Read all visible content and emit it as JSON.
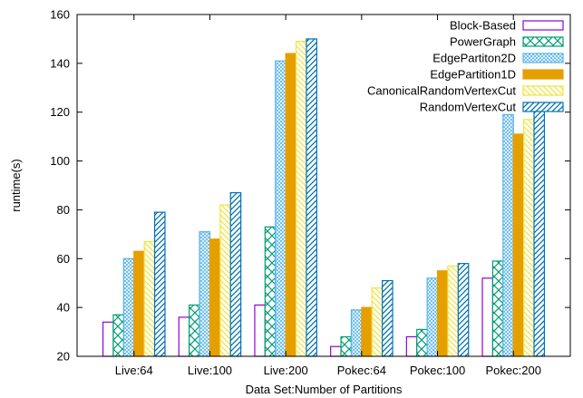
{
  "chart_data": {
    "type": "bar",
    "title": "",
    "xlabel": "Data Set:Number of Partitions",
    "ylabel": "runtime(s)",
    "ylim": [
      20,
      160
    ],
    "yticks": [
      20,
      40,
      60,
      80,
      100,
      120,
      140,
      160
    ],
    "grid": false,
    "legend_position": "top-right",
    "categories": [
      "Live:64",
      "Live:100",
      "Live:200",
      "Pokec:64",
      "Pokec:100",
      "Pokec:200"
    ],
    "series": [
      {
        "name": "Block-Based",
        "values": [
          34,
          36,
          41,
          24,
          28,
          52
        ],
        "color": "#9400d3",
        "pattern": "empty"
      },
      {
        "name": "PowerGraph",
        "values": [
          37,
          41,
          73,
          28,
          31,
          59
        ],
        "color": "#009e73",
        "pattern": "crosshatch"
      },
      {
        "name": "EdgePartiton2D",
        "values": [
          60,
          71,
          141,
          39,
          52,
          119
        ],
        "color": "#56b4e9",
        "pattern": "dense-crosshatch"
      },
      {
        "name": "EdgePartition1D",
        "values": [
          63,
          68,
          144,
          40,
          55,
          111
        ],
        "color": "#e69f00",
        "pattern": "solid"
      },
      {
        "name": "CanonicalRandomVertexCut",
        "values": [
          67,
          82,
          149,
          48,
          57,
          117
        ],
        "color": "#f0e442",
        "pattern": "diagonal-back"
      },
      {
        "name": "RandomVertexCut",
        "values": [
          79,
          87,
          150,
          51,
          58,
          121
        ],
        "color": "#0072b2",
        "pattern": "diagonal"
      }
    ]
  }
}
